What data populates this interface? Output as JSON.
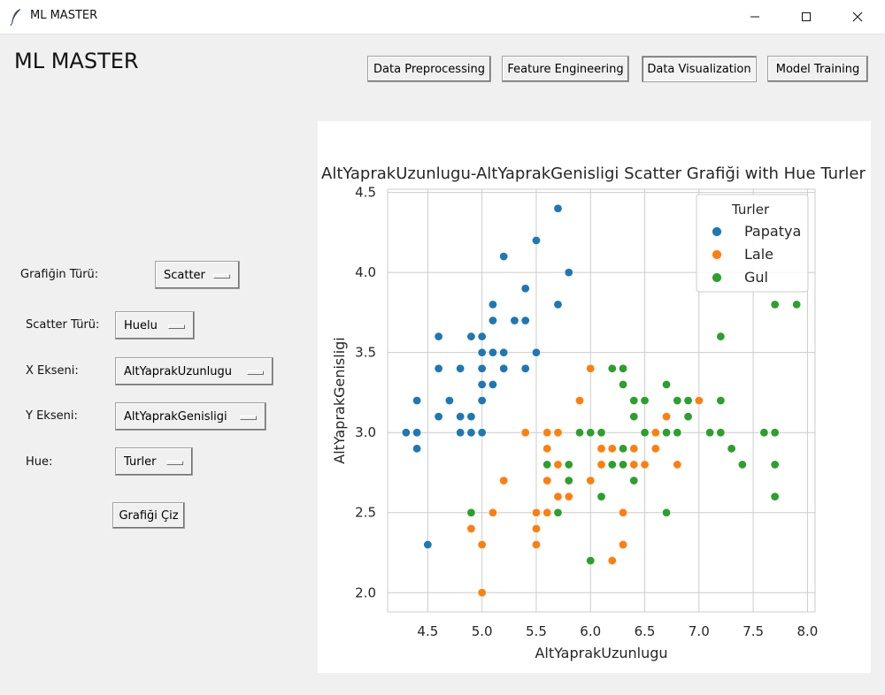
{
  "window": {
    "title": "ML MASTER",
    "icon": "feather-icon"
  },
  "app": {
    "title": "ML MASTER"
  },
  "nav": {
    "buttons": [
      "Data Preprocessing",
      "Feature Engineering",
      "Data Visualization",
      "Model Training"
    ],
    "active": "Data Visualization"
  },
  "form": {
    "chart_type_label": "Grafiğin Türü:",
    "chart_type_value": "Scatter",
    "scatter_type_label": "Scatter Türü:",
    "scatter_type_value": "Huelu",
    "x_axis_label": "X Ekseni:",
    "x_axis_value": "AltYaprakUzunlugu",
    "y_axis_label": "Y Ekseni:",
    "y_axis_value": "AltYaprakGenisligi",
    "hue_label": "Hue:",
    "hue_value": "Turler",
    "draw_button": "Grafiği Çiz"
  },
  "chart_data": {
    "type": "scatter",
    "title": "AltYaprakUzunlugu-AltYaprakGenisligi Scatter Grafiği with Hue Turler",
    "xlabel": "AltYaprakUzunlugu",
    "ylabel": "AltYaprakGenisligi",
    "xlim": [
      4.13,
      8.07
    ],
    "ylim": [
      1.88,
      4.52
    ],
    "xticks": [
      "4.5",
      "5.0",
      "5.5",
      "6.0",
      "6.5",
      "7.0",
      "7.5",
      "8.0"
    ],
    "yticks": [
      "2.0",
      "2.5",
      "3.0",
      "3.5",
      "4.0",
      "4.5"
    ],
    "grid": true,
    "legend": {
      "title": "Turler",
      "placement": "top-right"
    },
    "series": [
      {
        "name": "Papatya",
        "color": "#1f77b4",
        "points": [
          [
            5.1,
            3.5
          ],
          [
            4.9,
            3.0
          ],
          [
            4.7,
            3.2
          ],
          [
            4.6,
            3.1
          ],
          [
            5.0,
            3.6
          ],
          [
            5.4,
            3.9
          ],
          [
            4.6,
            3.4
          ],
          [
            5.0,
            3.4
          ],
          [
            4.4,
            2.9
          ],
          [
            4.9,
            3.1
          ],
          [
            5.4,
            3.7
          ],
          [
            4.8,
            3.4
          ],
          [
            4.8,
            3.0
          ],
          [
            4.3,
            3.0
          ],
          [
            5.8,
            4.0
          ],
          [
            5.7,
            4.4
          ],
          [
            5.1,
            3.8
          ],
          [
            5.7,
            3.8
          ],
          [
            5.2,
            4.1
          ],
          [
            5.5,
            4.2
          ],
          [
            5.0,
            3.3
          ],
          [
            5.2,
            3.4
          ],
          [
            4.4,
            3.2
          ],
          [
            5.0,
            3.5
          ],
          [
            4.5,
            2.3
          ],
          [
            5.0,
            3.2
          ],
          [
            5.1,
            3.7
          ],
          [
            5.3,
            3.7
          ],
          [
            4.6,
            3.6
          ],
          [
            5.5,
            3.5
          ],
          [
            5.4,
            3.4
          ],
          [
            4.9,
            3.6
          ],
          [
            5.1,
            3.3
          ],
          [
            4.8,
            3.1
          ],
          [
            5.2,
            3.5
          ],
          [
            4.4,
            3.0
          ],
          [
            5.0,
            3.0
          ]
        ]
      },
      {
        "name": "Lale",
        "color": "#ff7f0e",
        "points": [
          [
            7.0,
            3.2
          ],
          [
            5.5,
            2.3
          ],
          [
            6.5,
            2.8
          ],
          [
            5.7,
            2.8
          ],
          [
            6.3,
            2.3
          ],
          [
            4.9,
            2.4
          ],
          [
            6.6,
            2.9
          ],
          [
            5.2,
            2.7
          ],
          [
            5.0,
            2.0
          ],
          [
            5.9,
            3.0
          ],
          [
            6.0,
            2.2
          ],
          [
            6.1,
            2.9
          ],
          [
            5.6,
            2.9
          ],
          [
            5.8,
            2.7
          ],
          [
            6.2,
            2.2
          ],
          [
            5.6,
            2.5
          ],
          [
            5.9,
            3.2
          ],
          [
            6.1,
            2.8
          ],
          [
            6.4,
            2.9
          ],
          [
            6.8,
            2.8
          ],
          [
            5.5,
            2.4
          ],
          [
            5.5,
            2.5
          ],
          [
            6.0,
            2.7
          ],
          [
            5.4,
            3.0
          ],
          [
            6.0,
            3.4
          ],
          [
            5.6,
            3.0
          ],
          [
            5.0,
            2.3
          ],
          [
            5.7,
            3.0
          ],
          [
            5.1,
            2.5
          ],
          [
            6.1,
            3.0
          ],
          [
            5.7,
            2.6
          ],
          [
            6.3,
            2.5
          ],
          [
            6.2,
            2.9
          ],
          [
            5.6,
            2.7
          ],
          [
            6.4,
            2.8
          ],
          [
            6.6,
            3.0
          ],
          [
            6.7,
            3.1
          ],
          [
            5.8,
            2.6
          ]
        ]
      },
      {
        "name": "Gul",
        "color": "#2ca02c",
        "points": [
          [
            6.3,
            3.3
          ],
          [
            5.8,
            2.7
          ],
          [
            7.1,
            3.0
          ],
          [
            6.3,
            2.9
          ],
          [
            6.5,
            3.0
          ],
          [
            7.6,
            3.0
          ],
          [
            7.3,
            2.9
          ],
          [
            6.7,
            2.5
          ],
          [
            7.2,
            3.6
          ],
          [
            6.4,
            2.7
          ],
          [
            6.8,
            3.0
          ],
          [
            5.7,
            2.5
          ],
          [
            5.8,
            2.8
          ],
          [
            6.4,
            3.2
          ],
          [
            7.7,
            3.8
          ],
          [
            7.7,
            2.6
          ],
          [
            6.0,
            2.2
          ],
          [
            6.9,
            3.2
          ],
          [
            5.6,
            2.8
          ],
          [
            7.7,
            2.8
          ],
          [
            6.7,
            3.3
          ],
          [
            7.2,
            3.2
          ],
          [
            6.2,
            2.8
          ],
          [
            6.1,
            3.0
          ],
          [
            7.2,
            3.0
          ],
          [
            7.4,
            2.8
          ],
          [
            7.9,
            3.8
          ],
          [
            6.1,
            2.6
          ],
          [
            7.7,
            3.0
          ],
          [
            6.3,
            3.4
          ],
          [
            6.4,
            3.1
          ],
          [
            6.9,
            3.1
          ],
          [
            6.8,
            3.2
          ],
          [
            6.7,
            3.0
          ],
          [
            6.2,
            3.4
          ],
          [
            5.9,
            3.0
          ],
          [
            4.9,
            2.5
          ],
          [
            6.5,
            3.2
          ],
          [
            6.3,
            2.8
          ],
          [
            6.0,
            3.0
          ],
          [
            6.1,
            2.6
          ]
        ]
      }
    ]
  }
}
